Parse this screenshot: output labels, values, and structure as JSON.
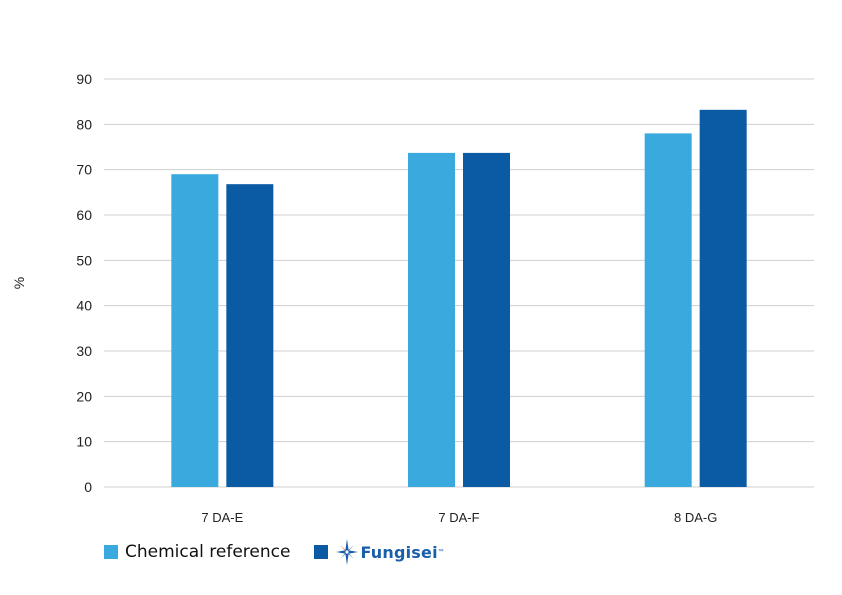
{
  "chart_data": {
    "type": "bar",
    "title": "",
    "xlabel": "",
    "ylabel": "%",
    "ylim": [
      0,
      90
    ],
    "yticks": [
      0,
      10,
      20,
      30,
      40,
      50,
      60,
      70,
      80,
      90
    ],
    "grid": true,
    "legend_position": "bottom-left",
    "categories": [
      "7 DA-E",
      "7 DA-F",
      "8 DA-G"
    ],
    "series": [
      {
        "name": "Chemical reference",
        "color": "#3aa9de",
        "values": [
          69,
          73.7,
          78
        ]
      },
      {
        "name": "Fungisei",
        "color": "#0a5aa4",
        "values": [
          66.8,
          73.7,
          83.2
        ]
      }
    ]
  },
  "legend": {
    "item1_label": "Chemical reference",
    "item2_logo_text": "Fungisei",
    "item2_logo_icon": "compass-star-icon"
  }
}
